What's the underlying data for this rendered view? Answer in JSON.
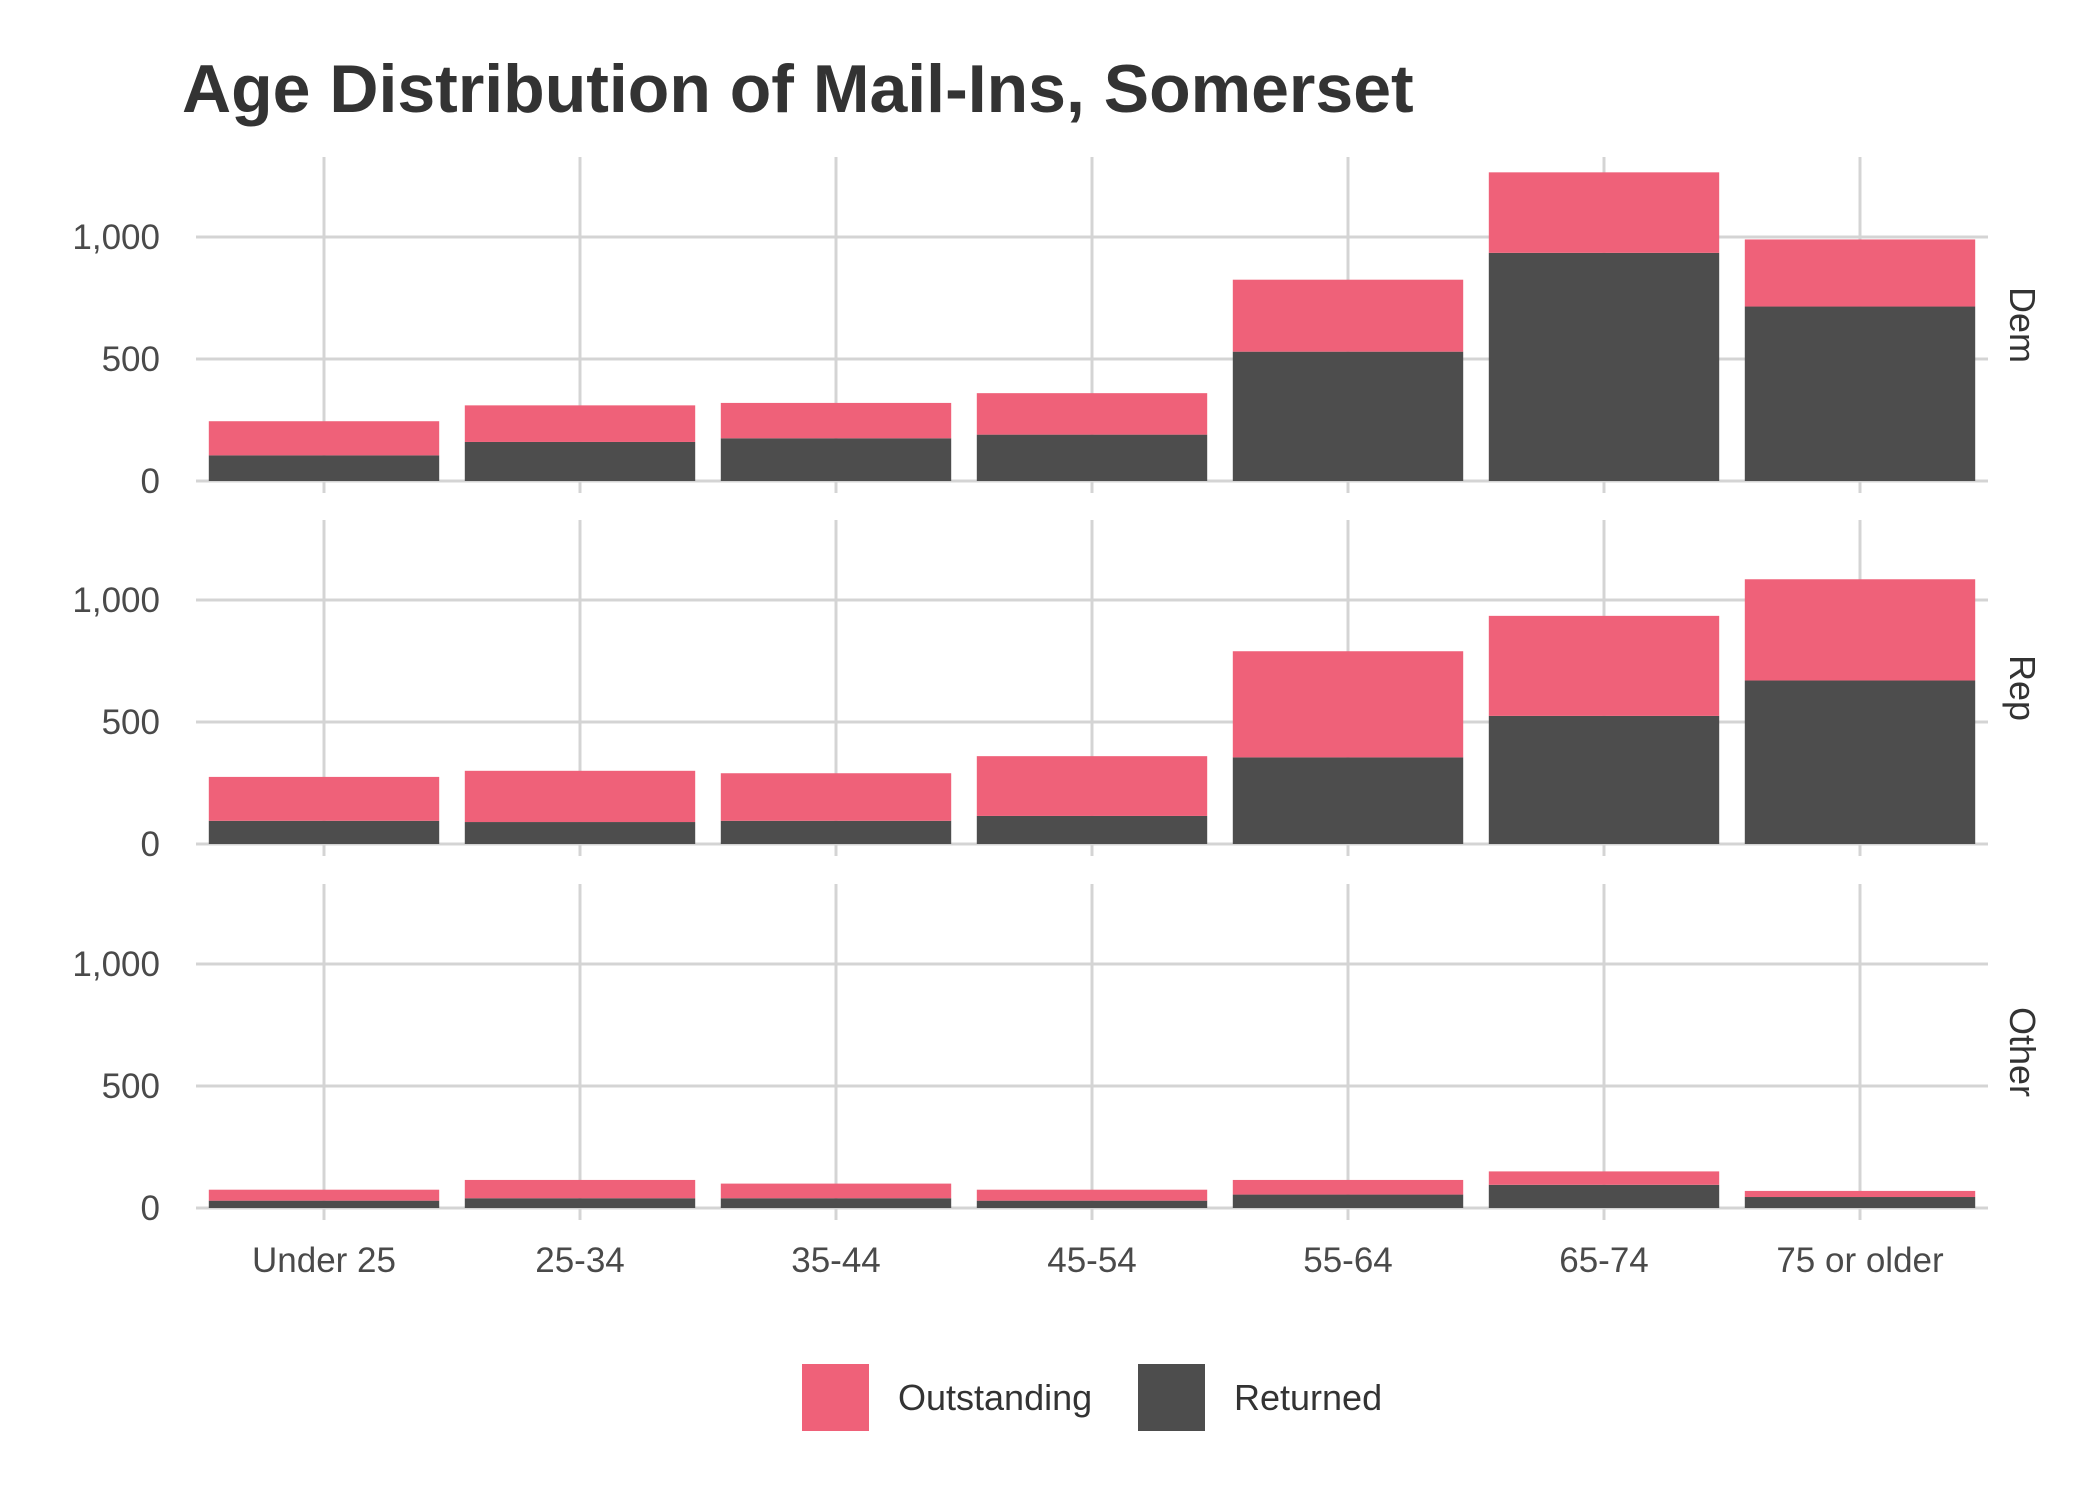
{
  "chart_data": {
    "type": "bar",
    "stacked": true,
    "title": "Age Distribution of Mail-Ins, Somerset",
    "categories": [
      "Under 25",
      "25-34",
      "35-44",
      "45-54",
      "55-64",
      "65-74",
      "75 or older"
    ],
    "y_ticks": [
      0,
      500,
      1000
    ],
    "y_tick_labels": [
      "0",
      "500",
      "1,000"
    ],
    "ylim": [
      0,
      1300
    ],
    "grid": true,
    "legend_position": "bottom",
    "colors": {
      "Outstanding": "#ef6179",
      "Returned": "#4d4d4d"
    },
    "legend": [
      "Outstanding",
      "Returned"
    ],
    "panels": [
      {
        "label": "Dem",
        "series": [
          {
            "name": "Returned",
            "values": [
              105,
              160,
              175,
              190,
              530,
              935,
              715
            ]
          },
          {
            "name": "Outstanding",
            "values": [
              140,
              150,
              145,
              170,
              295,
              330,
              275
            ]
          }
        ]
      },
      {
        "label": "Rep",
        "series": [
          {
            "name": "Returned",
            "values": [
              95,
              90,
              95,
              115,
              355,
              525,
              670
            ]
          },
          {
            "name": "Outstanding",
            "values": [
              180,
              210,
              195,
              245,
              435,
              410,
              415
            ]
          }
        ]
      },
      {
        "label": "Other",
        "series": [
          {
            "name": "Returned",
            "values": [
              30,
              40,
              40,
              30,
              55,
              95,
              45
            ]
          },
          {
            "name": "Outstanding",
            "values": [
              45,
              75,
              60,
              45,
              60,
              55,
              25
            ]
          }
        ]
      }
    ]
  }
}
